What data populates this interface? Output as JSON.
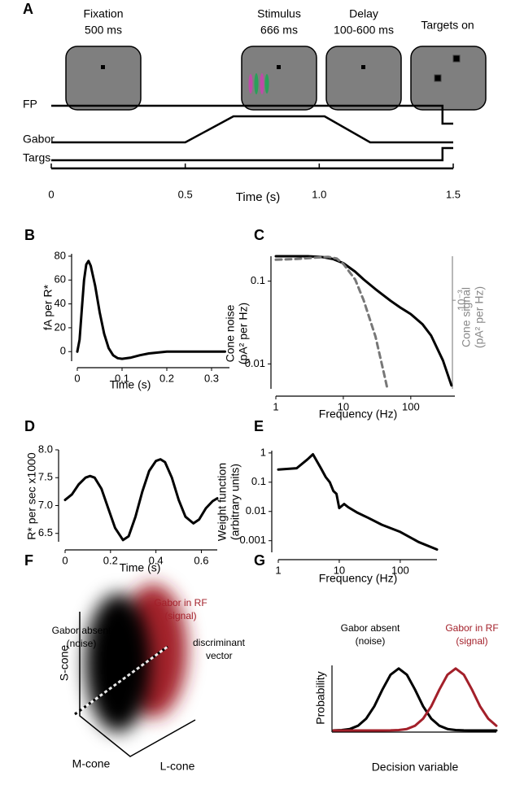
{
  "chart_data": [
    {
      "type": "timeline",
      "panel": "A",
      "xlabel": "Time (s)",
      "xlim": [
        0,
        1.5
      ],
      "xticks": [
        0,
        0.5,
        {
          "value": 1,
          "label": "1.0"
        },
        1.5
      ],
      "events": [
        {
          "label": "Fixation",
          "duration": "500 ms"
        },
        {
          "label": "Stimulus",
          "duration": "666 ms"
        },
        {
          "label": "Delay",
          "duration": "100-600 ms"
        },
        {
          "label": "Targets on"
        }
      ],
      "series": [
        {
          "name": "FP",
          "color": "#000000",
          "x": [
            0,
            1.46,
            1.46,
            1.5
          ],
          "values": [
            1,
            1,
            0,
            0
          ]
        },
        {
          "name": "Gabor",
          "color": "#000000",
          "x": [
            0,
            0.5,
            0.68,
            1.02,
            1.19,
            1.5
          ],
          "values": [
            0,
            0,
            1,
            1,
            0,
            0
          ]
        },
        {
          "name": "Targs",
          "color": "#000000",
          "x": [
            0,
            1.46,
            1.46,
            1.5
          ],
          "values": [
            0,
            0,
            1,
            1
          ]
        }
      ]
    },
    {
      "type": "line",
      "panel": "B",
      "xlabel": "Time (s)",
      "ylabel": "fA per R*",
      "xlim": [
        0,
        0.34
      ],
      "ylim": [
        -8,
        82
      ],
      "xticks": [
        0,
        0.1,
        0.2,
        0.3
      ],
      "yticks": [
        0,
        20,
        40,
        60,
        80
      ],
      "color": "#000000",
      "x": [
        0,
        0.005,
        0.01,
        0.015,
        0.02,
        0.025,
        0.03,
        0.04,
        0.05,
        0.06,
        0.07,
        0.08,
        0.09,
        0.1,
        0.12,
        0.14,
        0.16,
        0.2,
        0.25,
        0.3,
        0.33
      ],
      "values": [
        0,
        10,
        35,
        60,
        73,
        76,
        72,
        55,
        33,
        15,
        3,
        -3,
        -5.5,
        -6,
        -5,
        -3,
        -1.5,
        0,
        0,
        0,
        0
      ]
    },
    {
      "type": "line",
      "panel": "C",
      "xlabel": "Frequency (Hz)",
      "ylabel": [
        "Cone noise",
        "(pA² per Hz)"
      ],
      "y2label": [
        "Cone signal",
        "(pA² per Hz)"
      ],
      "xscale": "log",
      "yscale": "log",
      "y2scale": "log",
      "xlim": [
        1,
        450
      ],
      "ylim": [
        0.005,
        0.2
      ],
      "y2lim": [
        2e-05,
        0.007
      ],
      "xticks": [
        1,
        10,
        100
      ],
      "yticks": [
        0.01,
        0.1
      ],
      "y2ticks": [
        {
          "value": 0.001,
          "label": "10⁻³"
        }
      ],
      "series": [
        {
          "color": "#000000",
          "x": [
            1,
            2,
            3,
            5,
            7,
            10,
            15,
            20,
            30,
            50,
            70,
            100,
            150,
            200,
            300,
            400
          ],
          "values": [
            0.2,
            0.2,
            0.2,
            0.195,
            0.185,
            0.165,
            0.13,
            0.105,
            0.08,
            0.058,
            0.048,
            0.04,
            0.03,
            0.022,
            0.011,
            0.0055
          ]
        },
        {
          "color": "#777777",
          "style": "dashed",
          "axis": "y2",
          "x": [
            1,
            2,
            4,
            6,
            8,
            10,
            15,
            20,
            30,
            40,
            45
          ],
          "values": [
            0.006,
            0.0062,
            0.0066,
            0.0068,
            0.0063,
            0.005,
            0.0025,
            0.001,
            0.0002,
            4e-05,
            2e-05
          ]
        }
      ]
    },
    {
      "type": "line",
      "panel": "D",
      "xlabel": "Time (s)",
      "ylabel": "R* per sec x1000",
      "xlim": [
        0,
        0.67
      ],
      "ylim": [
        6.35,
        8.0
      ],
      "xticks": [
        0,
        0.2,
        0.4,
        0.6
      ],
      "yticks": [
        6.5,
        {
          "value": 7,
          "label": "7.0"
        },
        7.5,
        {
          "value": 8,
          "label": "8.0"
        }
      ],
      "color": "#000000",
      "x": [
        0,
        0.03,
        0.06,
        0.09,
        0.11,
        0.13,
        0.16,
        0.19,
        0.22,
        0.255,
        0.28,
        0.31,
        0.34,
        0.37,
        0.4,
        0.42,
        0.44,
        0.47,
        0.5,
        0.53,
        0.565,
        0.59,
        0.62,
        0.65,
        0.67
      ],
      "values": [
        7.1,
        7.2,
        7.38,
        7.5,
        7.53,
        7.5,
        7.3,
        6.95,
        6.6,
        6.38,
        6.45,
        6.8,
        7.25,
        7.62,
        7.8,
        7.83,
        7.78,
        7.5,
        7.1,
        6.8,
        6.68,
        6.75,
        6.95,
        7.08,
        7.13
      ]
    },
    {
      "type": "line",
      "panel": "E",
      "xlabel": "Frequency (Hz)",
      "ylabel": [
        "Weight function",
        "(arbitrary units)"
      ],
      "xscale": "log",
      "yscale": "log",
      "xlim": [
        1,
        400
      ],
      "ylim": [
        0.0004,
        1.2
      ],
      "xticks": [
        1,
        10,
        100
      ],
      "yticks": [
        0.001,
        0.01,
        0.1,
        1
      ],
      "color": "#000000",
      "x": [
        1,
        2,
        3,
        3.7,
        5,
        6,
        7,
        8,
        9,
        10,
        12,
        14,
        20,
        30,
        50,
        100,
        200,
        400
      ],
      "values": [
        0.27,
        0.3,
        0.6,
        0.9,
        0.3,
        0.15,
        0.1,
        0.05,
        0.04,
        0.013,
        0.018,
        0.014,
        0.009,
        0.006,
        0.0035,
        0.002,
        0.0009,
        0.0005
      ]
    },
    {
      "type": "density",
      "panel": "G",
      "xlabel": "Decision variable",
      "ylabel": "Probability",
      "xlim": [
        0,
        10
      ],
      "ylim": [
        0,
        1.05
      ],
      "x": [
        0,
        0.5,
        1,
        1.5,
        2,
        2.5,
        3,
        3.5,
        4,
        4.5,
        5,
        5.5,
        6,
        6.5,
        7,
        7.5,
        8,
        8.5,
        9,
        9.5,
        10
      ],
      "series": [
        {
          "name": [
            "Gabor absent",
            "(noise)"
          ],
          "color": "#000000",
          "values": [
            0.0013,
            0.006,
            0.024,
            0.076,
            0.19,
            0.39,
            0.66,
            0.9,
            1,
            0.9,
            0.66,
            0.39,
            0.19,
            0.076,
            0.024,
            0.006,
            0.0013,
            0.0002,
            0,
            0,
            0
          ]
        },
        {
          "name": [
            "Gabor in RF",
            "(signal)"
          ],
          "color": "#a3202a",
          "values": [
            0,
            0,
            0,
            0,
            0,
            0,
            0.0002,
            0.0013,
            0.006,
            0.024,
            0.076,
            0.19,
            0.39,
            0.66,
            0.9,
            1,
            0.9,
            0.66,
            0.39,
            0.19,
            0.076
          ]
        }
      ]
    }
  ],
  "diagram": {
    "panel": "F",
    "absent": [
      "Gabor absent",
      "(noise)"
    ],
    "signal": [
      "Gabor in RF",
      "(signal)"
    ],
    "vector": [
      "discriminant",
      "vector"
    ],
    "axes": [
      "S-cone",
      "M-cone",
      "L-cone"
    ]
  }
}
